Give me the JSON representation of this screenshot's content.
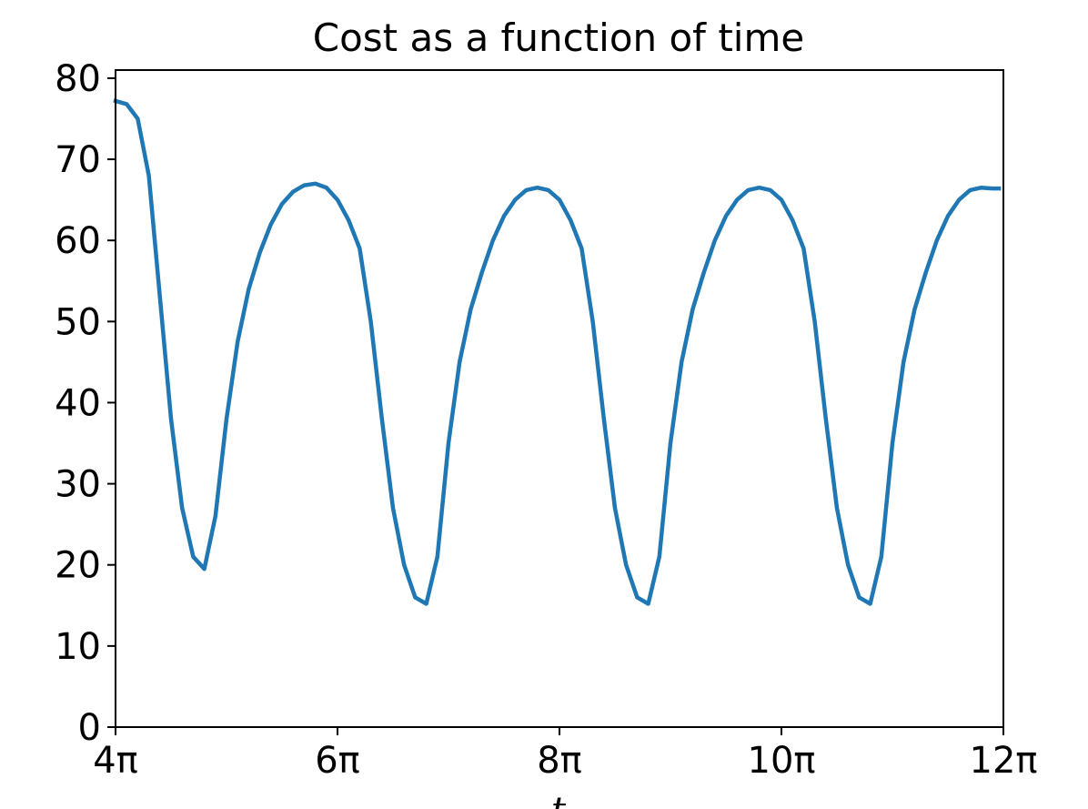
{
  "chart_data": {
    "type": "line",
    "title": "Cost as a function of time",
    "xlabel": "t",
    "ylabel": "",
    "x_unit": "π",
    "xlim": [
      4,
      12
    ],
    "ylim": [
      0,
      81
    ],
    "yticks": [
      0,
      10,
      20,
      30,
      40,
      50,
      60,
      70,
      80
    ],
    "ytick_labels": [
      "0",
      "10",
      "20",
      "30",
      "40",
      "50",
      "60",
      "70",
      "80"
    ],
    "xticks": [
      4,
      6,
      8,
      10,
      12
    ],
    "xtick_labels": [
      "4π",
      "6π",
      "8π",
      "10π",
      "12π"
    ],
    "grid": false,
    "line_color": "#1f77b4",
    "series": [
      {
        "x": [
          4.0,
          4.1,
          4.2,
          4.3,
          4.4,
          4.5,
          4.6,
          4.7,
          4.8,
          4.9,
          5.0,
          5.1,
          5.2,
          5.3,
          5.4,
          5.5,
          5.6,
          5.7,
          5.8,
          5.9,
          6.0,
          6.1,
          6.2,
          6.3,
          6.4,
          6.5,
          6.6,
          6.7,
          6.8,
          6.9,
          7.0,
          7.1,
          7.2,
          7.3,
          7.4,
          7.5,
          7.6,
          7.7,
          7.8,
          7.9,
          8.0,
          8.1,
          8.2,
          8.3,
          8.4,
          8.5,
          8.6,
          8.7,
          8.8,
          8.9,
          9.0,
          9.1,
          9.2,
          9.3,
          9.4,
          9.5,
          9.6,
          9.7,
          9.8,
          9.9,
          10.0,
          10.1,
          10.2,
          10.3,
          10.4,
          10.5,
          10.6,
          10.7,
          10.8,
          10.9,
          11.0,
          11.1,
          11.2,
          11.3,
          11.4,
          11.5,
          11.6,
          11.7,
          11.8,
          11.9,
          11.96
        ],
        "y": [
          77.2,
          76.8,
          75.0,
          68.0,
          53.0,
          38.0,
          27.0,
          21.0,
          19.5,
          26.0,
          38.0,
          47.5,
          54.0,
          58.5,
          62.0,
          64.5,
          66.0,
          66.8,
          67.0,
          66.5,
          65.0,
          62.5,
          59.0,
          50.0,
          38.0,
          27.0,
          20.0,
          16.0,
          15.2,
          21.0,
          35.0,
          45.0,
          51.5,
          56.0,
          60.0,
          63.0,
          65.0,
          66.2,
          66.5,
          66.2,
          65.0,
          62.5,
          59.0,
          50.0,
          38.0,
          27.0,
          20.0,
          16.0,
          15.2,
          21.0,
          35.0,
          45.0,
          51.5,
          56.0,
          60.0,
          63.0,
          65.0,
          66.2,
          66.5,
          66.2,
          65.0,
          62.5,
          59.0,
          50.0,
          38.0,
          27.0,
          20.0,
          16.0,
          15.2,
          21.0,
          35.0,
          45.0,
          51.5,
          56.0,
          60.0,
          63.0,
          65.0,
          66.2,
          66.5,
          66.4,
          66.4
        ]
      }
    ]
  }
}
